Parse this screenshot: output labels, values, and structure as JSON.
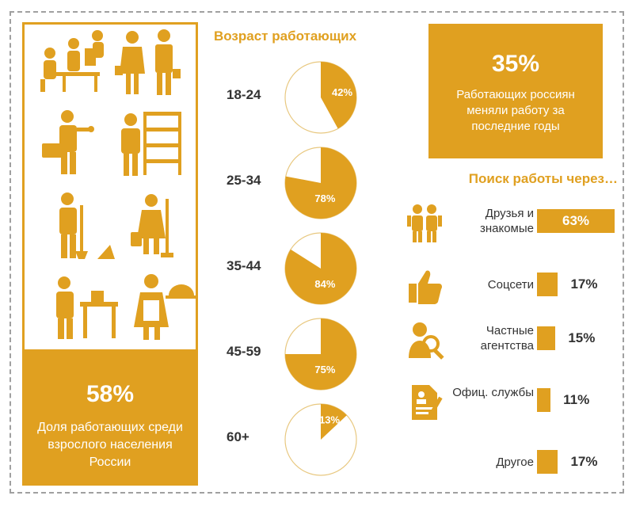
{
  "left": {
    "stat_value": "58%",
    "stat_label": "Доля работающих среди взрослого населения России",
    "icons": [
      "office-workers-icon",
      "business-people-icon",
      "repairman-icon",
      "shop-assistant-icon",
      "janitor-icon",
      "cleaner-icon",
      "craftsman-icon",
      "waitress-icon"
    ]
  },
  "age": {
    "title": "Возраст работающих"
  },
  "top_stat": {
    "value": "35%",
    "label": "Работающих россиян меняли работу за последние годы"
  },
  "search": {
    "title": "Поиск работы через…"
  },
  "colors": {
    "accent": "#e0a020",
    "text": "#333333",
    "pie_empty": "#ffffff",
    "pie_outline": "#e0a020"
  },
  "chart_data": [
    {
      "type": "pie",
      "title": "Возраст работающих",
      "categories": [
        "18-24",
        "25-34",
        "35-44",
        "45-59",
        "60+"
      ],
      "values": [
        42,
        78,
        84,
        75,
        13
      ],
      "labels": [
        "42%",
        "78%",
        "84%",
        "75%",
        "13%"
      ],
      "unit": "%"
    },
    {
      "type": "bar",
      "title": "Поиск работы через…",
      "categories": [
        "Друзья и знакомые",
        "Соцсети",
        "Частные агентства",
        "Офиц. службы",
        "Другое"
      ],
      "values": [
        63,
        17,
        15,
        11,
        17
      ],
      "labels": [
        "63%",
        "17%",
        "15%",
        "11%",
        "17%"
      ],
      "icons": [
        "friends-icon",
        "thumbs-up-icon",
        "agency-search-icon",
        "document-icon",
        ""
      ],
      "unit": "%"
    }
  ]
}
